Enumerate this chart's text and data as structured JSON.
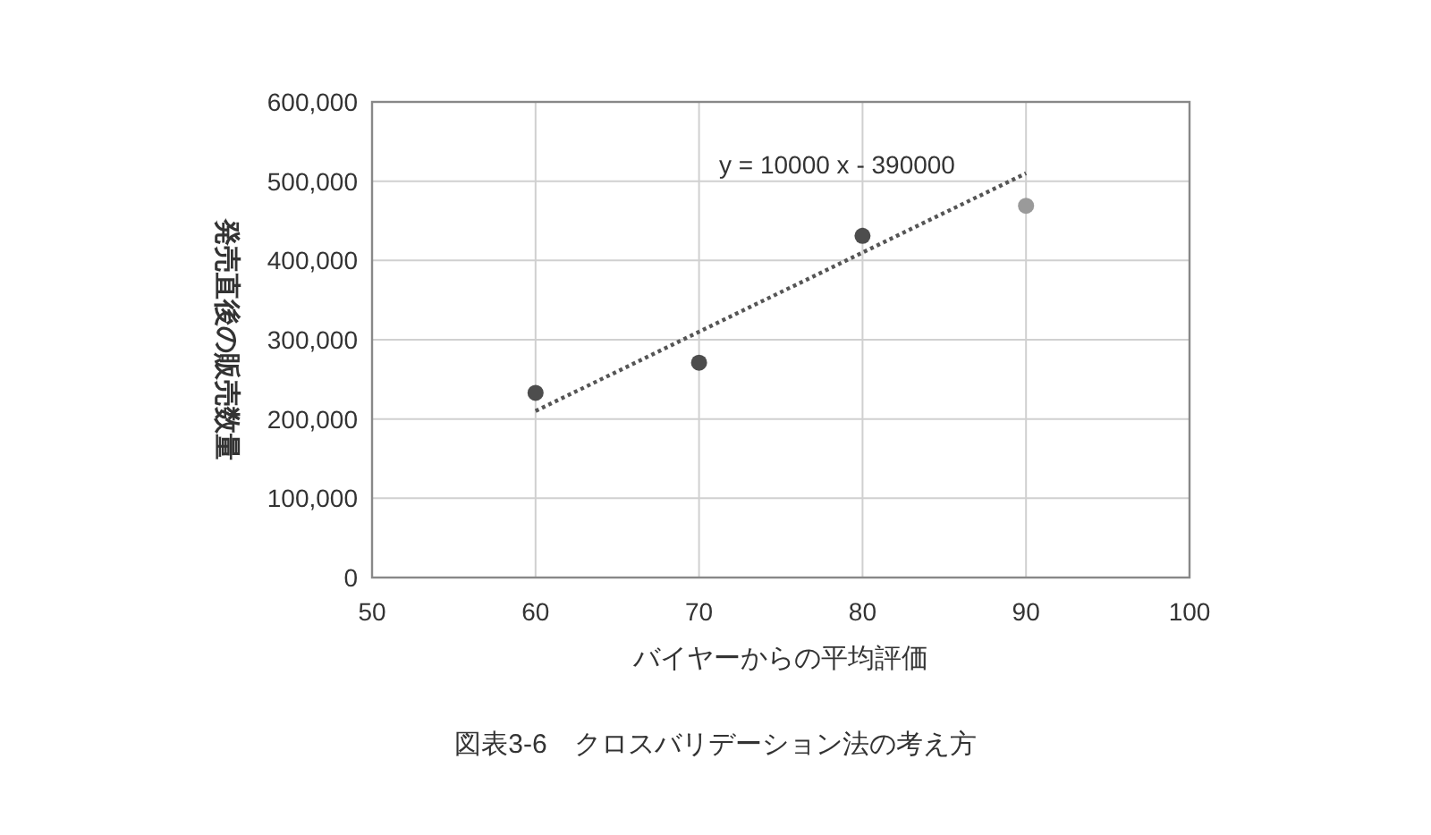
{
  "chart_data": {
    "type": "scatter",
    "xlabel": "バイヤーからの平均評価",
    "ylabel": "発売直後の販売数量",
    "annotations": [
      "y = 10000 x  - 390000",
      "図表3-6　クロスバリデーション法の考え方"
    ],
    "xlim": [
      50,
      100
    ],
    "xticks": [
      50,
      60,
      70,
      80,
      90,
      100
    ],
    "ylim": [
      0,
      600000
    ],
    "yticks": [
      {
        "value": 0,
        "label": "0"
      },
      {
        "value": 100000,
        "label": "100,000"
      },
      {
        "value": 200000,
        "label": "200,000"
      },
      {
        "value": 300000,
        "label": "300,000"
      },
      {
        "value": 400000,
        "label": "400,000"
      },
      {
        "value": 500000,
        "label": "500,000"
      },
      {
        "value": 600000,
        "label": "600,000"
      }
    ],
    "grid": true,
    "marker": "circle",
    "series": [
      {
        "color": "#4d4d4d",
        "x": [
          60,
          70,
          80
        ],
        "values": [
          233000,
          271000,
          431000
        ]
      },
      {
        "color": "#9a9a9a",
        "x": [
          90
        ],
        "values": [
          469000
        ]
      },
      {
        "type": "line",
        "color": "#555555",
        "x": [
          60,
          90
        ],
        "values": [
          210000,
          510000
        ],
        "line_style": "dotted",
        "marker": "none"
      }
    ]
  }
}
